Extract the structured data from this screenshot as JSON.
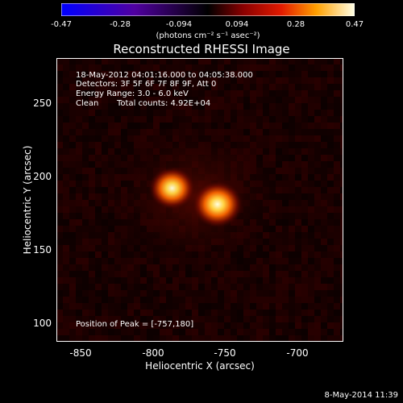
{
  "chart_data": {
    "type": "heatmap",
    "title": "Reconstructed RHESSI Image",
    "xlabel": "Heliocentric X (arcsec)",
    "ylabel": "Heliocentric Y (arcsec)",
    "xlim": [
      -867,
      -671
    ],
    "ylim": [
      86,
      280
    ],
    "xticks": [
      "-850",
      "-800",
      "-750",
      "-700"
    ],
    "yticks": [
      "250",
      "200",
      "150",
      "100"
    ],
    "colorbar": {
      "ticks": [
        "-0.47",
        "-0.28",
        "-0.094",
        "0.094",
        "0.28",
        "0.47"
      ],
      "range": [
        -0.47,
        0.47
      ],
      "units": "(photons cm⁻² s⁻¹ asec⁻²)"
    },
    "sources": [
      {
        "x": -788,
        "y": 191,
        "peak": 0.38
      },
      {
        "x": -757,
        "y": 180,
        "peak": 0.47
      }
    ],
    "annotations": {
      "time": "18-May-2012 04:01:16.000 to 04:05:38.000",
      "detectors": "Detectors: 3F 5F 6F 7F 8F 9F, Att 0",
      "energy": "Energy Range: 3.0 - 6.0 keV",
      "method": "Clean",
      "counts": "Total counts: 4.92E+04",
      "peak": "Position of Peak = [-757,180]"
    }
  },
  "footer": {
    "date": "8-May-2014 11:39"
  }
}
